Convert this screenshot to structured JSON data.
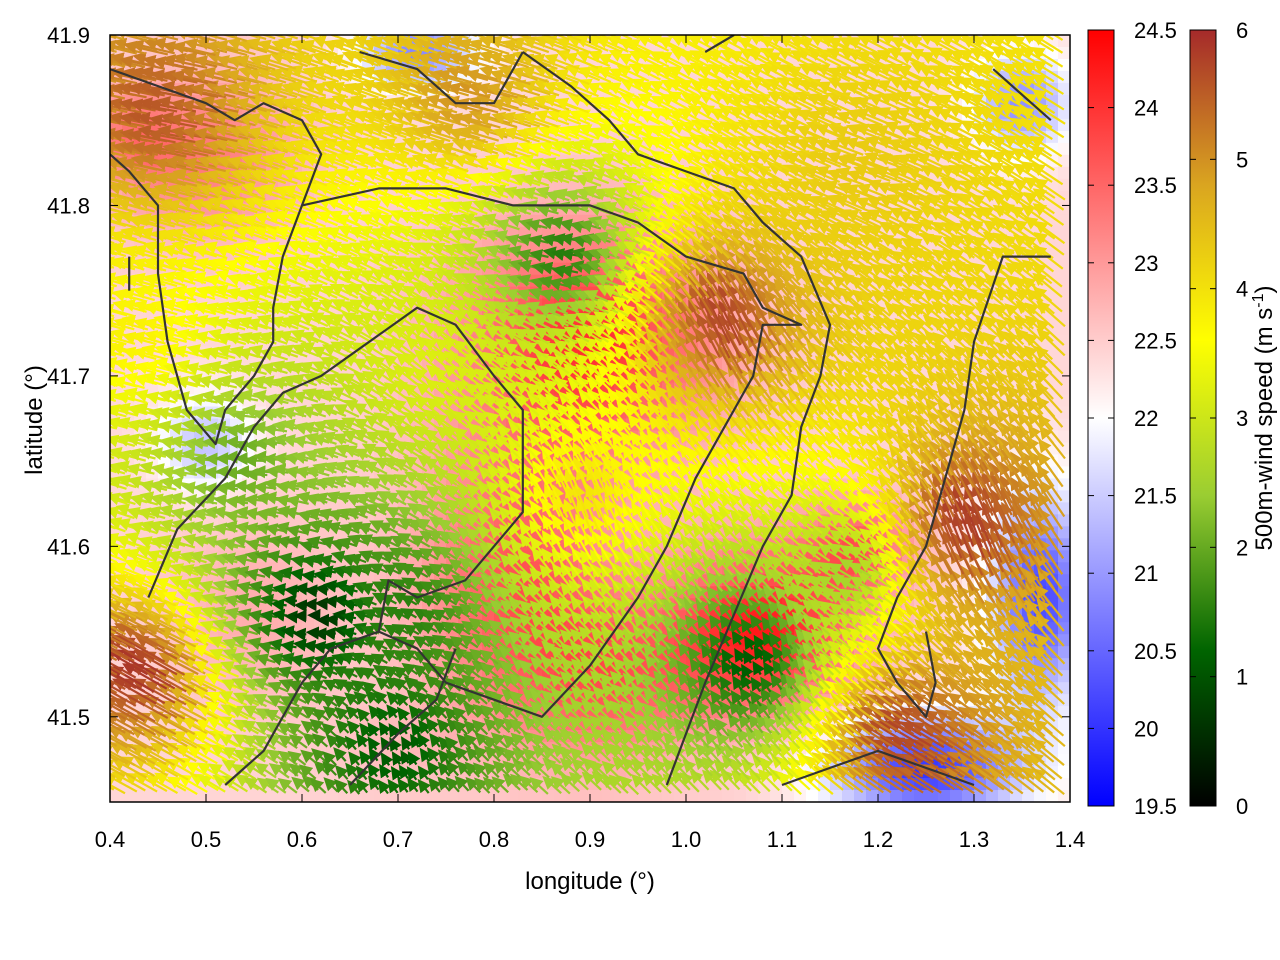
{
  "chart_data": {
    "type": "heatmap",
    "title": "",
    "xlabel": "longitude (°)",
    "ylabel": "latitude (°)",
    "xlim": [
      0.4,
      1.4
    ],
    "ylim": [
      41.45,
      41.9
    ],
    "x_ticks": [
      0.4,
      0.5,
      0.6,
      0.7,
      0.8,
      0.9,
      1.0,
      1.1,
      1.2,
      1.3,
      1.4
    ],
    "x_tick_labels": [
      "0.4",
      "0.5",
      "0.6",
      "0.7",
      "0.8",
      "0.9",
      "1.0",
      "1.1",
      "1.2",
      "1.3",
      "1.4"
    ],
    "y_ticks": [
      41.5,
      41.6,
      41.7,
      41.8,
      41.9
    ],
    "y_tick_labels": [
      "41.5",
      "41.6",
      "41.7",
      "41.8",
      "41.9"
    ],
    "temperature_colorbar": {
      "range": [
        19.5,
        24.5
      ],
      "ticks": [
        19.5,
        20,
        20.5,
        21,
        21.5,
        22,
        22.5,
        23,
        23.5,
        24,
        24.5
      ],
      "tick_labels": [
        "19.5",
        "20",
        "20.5",
        "21",
        "21.5",
        "22",
        "22.5",
        "23",
        "23.5",
        "24",
        "24.5"
      ],
      "colors": [
        "#0000ff",
        "#ffffff",
        "#ff0000"
      ]
    },
    "wind_colorbar": {
      "label": "500m-wind speed (m s",
      "label_sup": "-1",
      "label_end": ")",
      "range": [
        0,
        6
      ],
      "ticks": [
        0,
        1,
        2,
        3,
        4,
        5,
        6
      ],
      "tick_labels": [
        "0",
        "1",
        "2",
        "3",
        "4",
        "5",
        "6"
      ],
      "colors": [
        "#000000",
        "#006400",
        "#9acd32",
        "#ffff00",
        "#daa520",
        "#a52a2a"
      ]
    },
    "temperature_blobs": [
      {
        "x": 0.9,
        "y": 41.72,
        "value": 24.0,
        "sx": 0.14,
        "sy": 0.07
      },
      {
        "x": 0.82,
        "y": 41.58,
        "value": 23.6,
        "sx": 0.1,
        "sy": 0.08
      },
      {
        "x": 1.08,
        "y": 41.55,
        "value": 24.2,
        "sx": 0.1,
        "sy": 0.05
      },
      {
        "x": 1.18,
        "y": 41.6,
        "value": 23.5,
        "sx": 0.06,
        "sy": 0.03
      },
      {
        "x": 0.92,
        "y": 41.52,
        "value": 23.4,
        "sx": 0.1,
        "sy": 0.05
      },
      {
        "x": 0.5,
        "y": 41.83,
        "value": 23.3,
        "sx": 0.1,
        "sy": 0.05
      },
      {
        "x": 0.42,
        "y": 41.84,
        "value": 23.0,
        "sx": 0.05,
        "sy": 0.03
      },
      {
        "x": 0.55,
        "y": 41.56,
        "value": 22.8,
        "sx": 0.1,
        "sy": 0.06
      },
      {
        "x": 0.7,
        "y": 41.48,
        "value": 22.6,
        "sx": 0.08,
        "sy": 0.03
      },
      {
        "x": 1.37,
        "y": 41.57,
        "value": 20.2,
        "sx": 0.05,
        "sy": 0.06
      },
      {
        "x": 1.25,
        "y": 41.47,
        "value": 20.0,
        "sx": 0.1,
        "sy": 0.03
      },
      {
        "x": 0.72,
        "y": 41.89,
        "value": 20.8,
        "sx": 0.06,
        "sy": 0.02
      },
      {
        "x": 0.5,
        "y": 41.66,
        "value": 21.4,
        "sx": 0.05,
        "sy": 0.03
      },
      {
        "x": 1.35,
        "y": 41.86,
        "value": 20.9,
        "sx": 0.05,
        "sy": 0.03
      }
    ],
    "temperature_base": 22.4,
    "wind_field": {
      "description_only_for_script": false,
      "regions": [
        {
          "x": 0.45,
          "y": 41.52,
          "speed": 6.0,
          "dir_deg": 150
        },
        {
          "x": 0.48,
          "y": 41.85,
          "speed": 5.6,
          "dir_deg": 170
        },
        {
          "x": 0.8,
          "y": 41.86,
          "speed": 5.0,
          "dir_deg": 165
        },
        {
          "x": 1.2,
          "y": 41.82,
          "speed": 4.3,
          "dir_deg": 160
        },
        {
          "x": 1.05,
          "y": 41.72,
          "speed": 5.8,
          "dir_deg": 115
        },
        {
          "x": 1.3,
          "y": 41.6,
          "speed": 5.9,
          "dir_deg": 110
        },
        {
          "x": 1.25,
          "y": 41.48,
          "speed": 5.8,
          "dir_deg": 150
        },
        {
          "x": 0.45,
          "y": 41.72,
          "speed": 3.8,
          "dir_deg": 165
        },
        {
          "x": 0.55,
          "y": 41.65,
          "speed": 2.0,
          "dir_deg": 180
        },
        {
          "x": 0.62,
          "y": 41.56,
          "speed": 0.5,
          "dir_deg": 180
        },
        {
          "x": 0.72,
          "y": 41.56,
          "speed": 1.5,
          "dir_deg": 150
        },
        {
          "x": 0.88,
          "y": 41.77,
          "speed": 1.4,
          "dir_deg": 170
        },
        {
          "x": 0.75,
          "y": 41.7,
          "speed": 3.2,
          "dir_deg": 140
        },
        {
          "x": 0.9,
          "y": 41.62,
          "speed": 4.0,
          "dir_deg": 110
        },
        {
          "x": 1.07,
          "y": 41.53,
          "speed": 1.0,
          "dir_deg": 120
        },
        {
          "x": 1.18,
          "y": 41.58,
          "speed": 2.5,
          "dir_deg": 150
        },
        {
          "x": 0.7,
          "y": 41.48,
          "speed": 1.0,
          "dir_deg": 120
        }
      ]
    },
    "contours": [
      [
        [
          0.4,
          41.88
        ],
        [
          0.45,
          41.87
        ],
        [
          0.5,
          41.86
        ],
        [
          0.53,
          41.85
        ],
        [
          0.56,
          41.86
        ],
        [
          0.6,
          41.85
        ],
        [
          0.62,
          41.83
        ],
        [
          0.6,
          41.8
        ],
        [
          0.58,
          41.77
        ],
        [
          0.57,
          41.74
        ],
        [
          0.57,
          41.72
        ],
        [
          0.55,
          41.7
        ],
        [
          0.52,
          41.68
        ],
        [
          0.51,
          41.66
        ],
        [
          0.48,
          41.68
        ],
        [
          0.46,
          41.72
        ],
        [
          0.45,
          41.76
        ],
        [
          0.45,
          41.8
        ],
        [
          0.42,
          41.82
        ],
        [
          0.4,
          41.83
        ]
      ],
      [
        [
          0.42,
          41.77
        ],
        [
          0.42,
          41.75
        ]
      ],
      [
        [
          0.44,
          41.57
        ],
        [
          0.47,
          41.61
        ],
        [
          0.52,
          41.64
        ],
        [
          0.55,
          41.67
        ],
        [
          0.58,
          41.69
        ],
        [
          0.62,
          41.7
        ],
        [
          0.67,
          41.72
        ],
        [
          0.72,
          41.74
        ],
        [
          0.76,
          41.73
        ],
        [
          0.8,
          41.7
        ],
        [
          0.83,
          41.68
        ],
        [
          0.83,
          41.62
        ],
        [
          0.8,
          41.6
        ],
        [
          0.77,
          41.58
        ],
        [
          0.72,
          41.57
        ],
        [
          0.69,
          41.58
        ],
        [
          0.68,
          41.55
        ],
        [
          0.72,
          41.54
        ],
        [
          0.75,
          41.52
        ],
        [
          0.8,
          41.51
        ],
        [
          0.85,
          41.5
        ],
        [
          0.9,
          41.53
        ],
        [
          0.95,
          41.57
        ],
        [
          0.98,
          41.6
        ],
        [
          1.01,
          41.64
        ],
        [
          1.05,
          41.68
        ],
        [
          1.07,
          41.7
        ],
        [
          1.08,
          41.73
        ],
        [
          1.12,
          41.73
        ],
        [
          1.08,
          41.74
        ],
        [
          1.06,
          41.76
        ],
        [
          1.0,
          41.77
        ],
        [
          0.95,
          41.79
        ],
        [
          0.9,
          41.8
        ],
        [
          0.82,
          41.8
        ],
        [
          0.75,
          41.81
        ],
        [
          0.68,
          41.81
        ],
        [
          0.6,
          41.8
        ]
      ],
      [
        [
          0.52,
          41.46
        ],
        [
          0.56,
          41.48
        ],
        [
          0.58,
          41.5
        ],
        [
          0.6,
          41.52
        ],
        [
          0.63,
          41.54
        ],
        [
          0.68,
          41.55
        ]
      ],
      [
        [
          0.65,
          41.46
        ],
        [
          0.7,
          41.49
        ],
        [
          0.74,
          41.51
        ],
        [
          0.76,
          41.54
        ]
      ],
      [
        [
          0.83,
          41.89
        ],
        [
          0.88,
          41.87
        ],
        [
          0.92,
          41.85
        ],
        [
          0.95,
          41.83
        ],
        [
          1.0,
          41.82
        ],
        [
          1.05,
          41.81
        ],
        [
          1.08,
          41.79
        ],
        [
          1.12,
          41.77
        ],
        [
          1.15,
          41.73
        ],
        [
          1.14,
          41.7
        ],
        [
          1.12,
          41.67
        ],
        [
          1.11,
          41.63
        ],
        [
          1.08,
          41.6
        ],
        [
          1.05,
          41.56
        ],
        [
          1.02,
          41.52
        ],
        [
          1.0,
          41.49
        ],
        [
          0.98,
          41.46
        ]
      ],
      [
        [
          0.66,
          41.89
        ],
        [
          0.72,
          41.88
        ],
        [
          0.76,
          41.86
        ],
        [
          0.8,
          41.86
        ],
        [
          0.83,
          41.89
        ]
      ],
      [
        [
          1.02,
          41.89
        ],
        [
          1.05,
          41.9
        ]
      ],
      [
        [
          1.32,
          41.88
        ],
        [
          1.36,
          41.86
        ],
        [
          1.38,
          41.85
        ]
      ],
      [
        [
          1.38,
          41.77
        ],
        [
          1.33,
          41.77
        ],
        [
          1.3,
          41.72
        ],
        [
          1.29,
          41.68
        ],
        [
          1.27,
          41.64
        ],
        [
          1.25,
          41.6
        ],
        [
          1.22,
          41.57
        ],
        [
          1.2,
          41.54
        ],
        [
          1.22,
          41.52
        ],
        [
          1.25,
          41.5
        ],
        [
          1.26,
          41.52
        ],
        [
          1.25,
          41.55
        ]
      ],
      [
        [
          1.1,
          41.46
        ],
        [
          1.15,
          41.47
        ],
        [
          1.2,
          41.48
        ],
        [
          1.25,
          41.47
        ],
        [
          1.3,
          41.46
        ]
      ]
    ]
  }
}
